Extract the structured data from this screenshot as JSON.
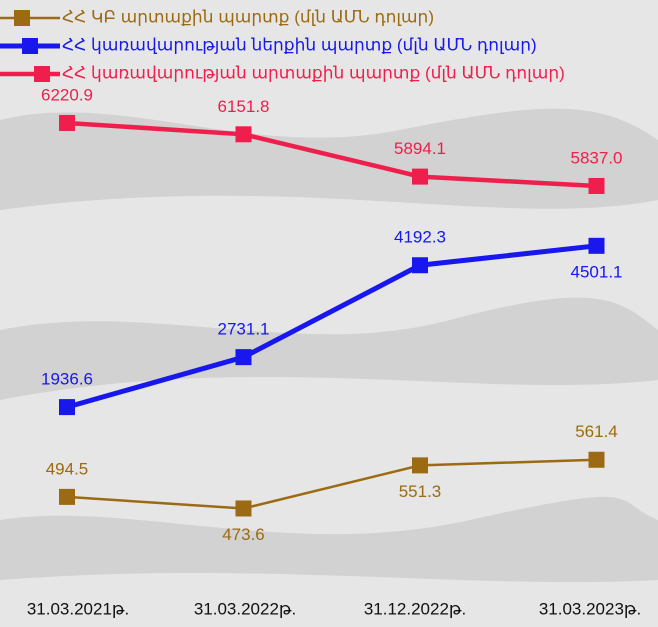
{
  "chart_data": {
    "type": "line",
    "categories": [
      "31.03.2021թ.",
      "31.03.2022թ.",
      "31.12.2022թ.",
      "31.03.2023թ."
    ],
    "series": [
      {
        "name": "ՀՀ ԿԲ արտաքին պարտք (մլն ԱՄՆ դոլար)",
        "color": "#9b6a12",
        "values": [
          494.5,
          473.6,
          551.3,
          561.4
        ],
        "value_labels": [
          "494.5",
          "473.6",
          "551.3",
          "561.4"
        ],
        "ylim": [
          260,
          1390
        ]
      },
      {
        "name": "ՀՀ կառավարության ներքին պարտք (մլն ԱՄՆ դոլար)",
        "color": "#1717ee",
        "values": [
          1936.6,
          2731.1,
          4192.3,
          4501.1
        ],
        "value_labels": [
          "1936.6",
          "2731.1",
          "4192.3",
          "4501.1"
        ],
        "ylim": [
          -1560,
          8410
        ]
      },
      {
        "name": "ՀՀ կառավարության արտաքին պարտք (մլն ԱՄՆ դոլար)",
        "color": "#ee1f4c",
        "values": [
          6220.9,
          6151.8,
          5894.1,
          5837
        ],
        "value_labels": [
          "6220.9",
          "6151.8",
          "5894.1",
          "5837.0"
        ],
        "ylim": [
          3150,
          6970
        ]
      }
    ]
  }
}
